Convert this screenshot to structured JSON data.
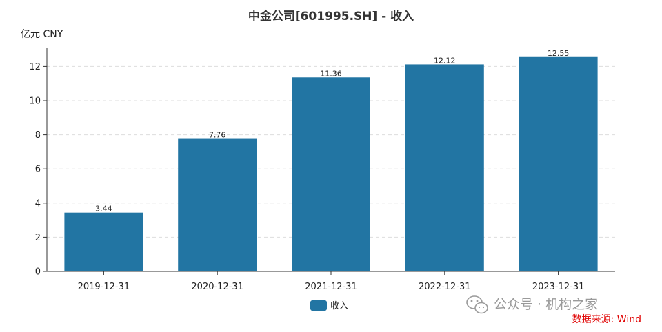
{
  "chart_data": {
    "type": "bar",
    "title": "中金公司[601995.SH] - 收入",
    "unit_label": "亿元  CNY",
    "categories": [
      "2019-12-31",
      "2020-12-31",
      "2021-12-31",
      "2022-12-31",
      "2023-12-31"
    ],
    "series": [
      {
        "name": "收入",
        "values": [
          3.44,
          7.76,
          11.36,
          12.12,
          12.55
        ],
        "color": "#2275a3"
      }
    ],
    "data_labels": [
      "3.44",
      "7.76",
      "11.36",
      "12.12",
      "12.55"
    ],
    "y_ticks": [
      "0",
      "2",
      "4",
      "6",
      "8",
      "10",
      "12"
    ],
    "ylim": [
      0,
      13
    ],
    "grid": "horizontal-dashed",
    "legend_position": "bottom-center"
  },
  "watermark": {
    "icon": "wechat-icon",
    "text": "公众号 · 机构之家"
  },
  "source_text": "数据来源: Wind"
}
